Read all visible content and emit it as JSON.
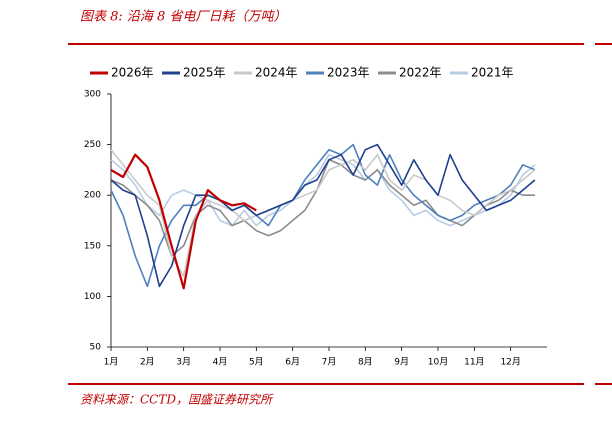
{
  "chart_data": {
    "type": "line",
    "title": "图表 8:  沿海 8 省电厂日耗（万吨）",
    "source": "资料来源：CCTD，国盛证券研究所",
    "categories": [
      "1月",
      null,
      null,
      "2月",
      null,
      null,
      "3月",
      null,
      null,
      "4月",
      null,
      null,
      "5月",
      null,
      null,
      "6月",
      null,
      null,
      "7月",
      null,
      null,
      "8月",
      null,
      null,
      "9月",
      null,
      null,
      "10月",
      null,
      null,
      "11月",
      null,
      null,
      "12月",
      null,
      null
    ],
    "series": [
      {
        "name": "2026年",
        "color": "#c00000",
        "values": [
          225,
          218,
          240,
          228,
          195,
          150,
          108,
          175,
          205,
          195,
          190,
          192,
          185,
          null,
          null,
          null,
          null,
          null,
          null,
          null,
          null,
          null,
          null,
          null,
          null,
          null,
          null,
          null,
          null,
          null,
          null,
          null,
          null,
          null,
          null,
          null
        ]
      },
      {
        "name": "2025年",
        "color": "#1f3f8f",
        "values": [
          215,
          205,
          200,
          160,
          110,
          130,
          170,
          200,
          200,
          195,
          185,
          190,
          180,
          185,
          190,
          195,
          210,
          215,
          235,
          240,
          220,
          245,
          250,
          230,
          210,
          235,
          215,
          200,
          240,
          215,
          200,
          185,
          190,
          195,
          205,
          215
        ]
      },
      {
        "name": "2024年",
        "color": "#c9c9c9",
        "values": [
          245,
          230,
          215,
          200,
          190,
          140,
          120,
          180,
          195,
          190,
          185,
          175,
          180,
          185,
          190,
          195,
          200,
          205,
          225,
          230,
          235,
          225,
          240,
          215,
          205,
          220,
          215,
          200,
          195,
          185,
          180,
          190,
          200,
          205,
          215,
          225
        ]
      },
      {
        "name": "2023年",
        "color": "#4f81bd",
        "values": [
          205,
          180,
          140,
          110,
          150,
          175,
          190,
          190,
          200,
          195,
          185,
          190,
          180,
          170,
          190,
          195,
          215,
          230,
          245,
          240,
          250,
          220,
          210,
          240,
          215,
          200,
          190,
          180,
          175,
          180,
          190,
          195,
          200,
          210,
          230,
          225
        ]
      },
      {
        "name": "2022年",
        "color": "#8c8c8c",
        "values": [
          215,
          210,
          200,
          190,
          175,
          140,
          150,
          180,
          190,
          185,
          170,
          175,
          165,
          160,
          165,
          175,
          185,
          205,
          235,
          230,
          220,
          215,
          225,
          210,
          200,
          190,
          195,
          180,
          175,
          170,
          180,
          190,
          195,
          205,
          200,
          200
        ]
      },
      {
        "name": "2021年",
        "color": "#b8cce4",
        "values": [
          235,
          225,
          210,
          190,
          180,
          200,
          205,
          200,
          195,
          175,
          170,
          185,
          170,
          180,
          185,
          195,
          210,
          220,
          240,
          235,
          230,
          215,
          225,
          205,
          195,
          180,
          185,
          175,
          170,
          175,
          180,
          185,
          190,
          200,
          220,
          230
        ]
      }
    ],
    "ylim": [
      50,
      300
    ],
    "yticks": [
      50,
      100,
      150,
      200,
      250,
      300
    ],
    "grid": false,
    "legend": "top"
  }
}
